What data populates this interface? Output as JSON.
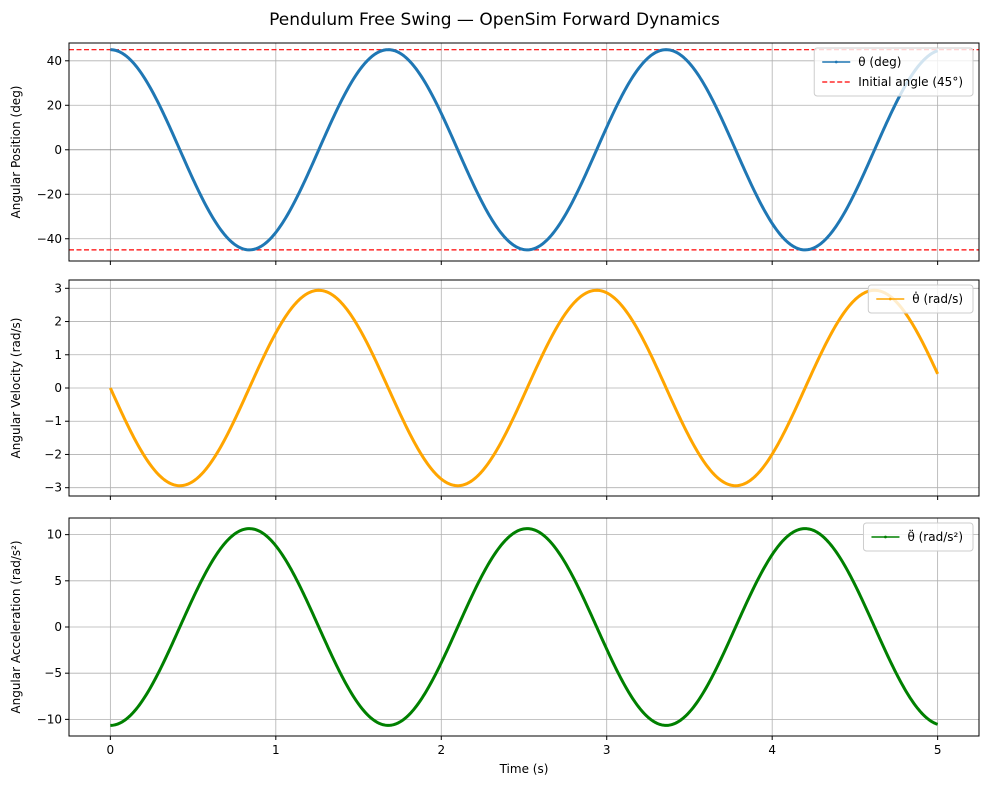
{
  "figure": {
    "title": "Pendulum Free Swing — OpenSim Forward Dynamics"
  },
  "chart_data": [
    {
      "type": "line",
      "ylabel": "Angular Position (deg)",
      "xlabel": "",
      "xlim": [
        -0.25,
        5.25
      ],
      "ylim": [
        -50,
        48
      ],
      "xticks": [
        0,
        1,
        2,
        3,
        4,
        5
      ],
      "xtick_labels_visible": false,
      "yticks": [
        -40,
        -20,
        0,
        20,
        40
      ],
      "grid": true,
      "legend": "top-right",
      "function": {
        "kind": "cos",
        "amplitude": 45,
        "omega": 3.741,
        "offset": 0,
        "x_start": 0,
        "x_end": 5
      },
      "series": [
        {
          "name": "θ (deg)",
          "color": "#1f77b4",
          "style": "solid"
        }
      ],
      "reference_lines": [
        {
          "name": "Initial angle (45°)",
          "value": 45,
          "color": "#ff0000",
          "style": "dashed",
          "in_legend": true
        },
        {
          "name": "",
          "value": -45,
          "color": "#ff0000",
          "style": "dashed",
          "in_legend": false
        },
        {
          "name": "",
          "value": 0,
          "color": "#808080",
          "style": "solid-thin",
          "in_legend": false
        }
      ]
    },
    {
      "type": "line",
      "ylabel": "Angular Velocity (rad/s)",
      "xlabel": "",
      "xlim": [
        -0.25,
        5.25
      ],
      "ylim": [
        -3.25,
        3.25
      ],
      "xticks": [
        0,
        1,
        2,
        3,
        4,
        5
      ],
      "xtick_labels_visible": false,
      "yticks": [
        -3,
        -2,
        -1,
        0,
        1,
        2,
        3
      ],
      "grid": true,
      "legend": "top-right",
      "function": {
        "kind": "neg-sin",
        "amplitude": 2.94,
        "omega": 3.741,
        "offset": 0,
        "x_start": 0,
        "x_end": 5
      },
      "series": [
        {
          "name": "θ̇ (rad/s)",
          "color": "#ffa500",
          "style": "solid"
        }
      ],
      "reference_lines": []
    },
    {
      "type": "line",
      "ylabel": "Angular Acceleration (rad/s²)",
      "xlabel": "Time (s)",
      "xlim": [
        -0.25,
        5.25
      ],
      "ylim": [
        -11.8,
        11.8
      ],
      "xticks": [
        0,
        1,
        2,
        3,
        4,
        5
      ],
      "xtick_labels_visible": true,
      "yticks": [
        -10,
        -5,
        0,
        5,
        10
      ],
      "grid": true,
      "legend": "top-right",
      "function": {
        "kind": "neg-cos",
        "amplitude": 10.65,
        "omega": 3.741,
        "offset": 0,
        "x_start": 0,
        "x_end": 5
      },
      "series": [
        {
          "name": "θ̈ (rad/s²)",
          "color": "#008000",
          "style": "solid"
        }
      ],
      "reference_lines": []
    }
  ]
}
